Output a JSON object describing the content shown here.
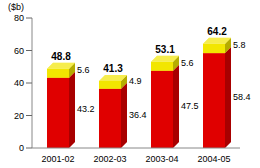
{
  "chart_data": {
    "type": "bar",
    "stacked": true,
    "data_labels": true,
    "y_label": "($b)",
    "categories": [
      "2001-02",
      "2002-03",
      "2003-04",
      "2004-05"
    ],
    "series": [
      {
        "color": "#e00000",
        "values": [
          43.2,
          36.4,
          47.5,
          58.4
        ]
      },
      {
        "color": "#f2e600",
        "values": [
          5.6,
          4.9,
          5.6,
          5.8
        ]
      }
    ],
    "totals": [
      48.8,
      41.3,
      53.1,
      64.2
    ],
    "ylim": [
      0,
      80
    ],
    "yticks": [
      0,
      20,
      40,
      60,
      80
    ],
    "grid": false
  }
}
